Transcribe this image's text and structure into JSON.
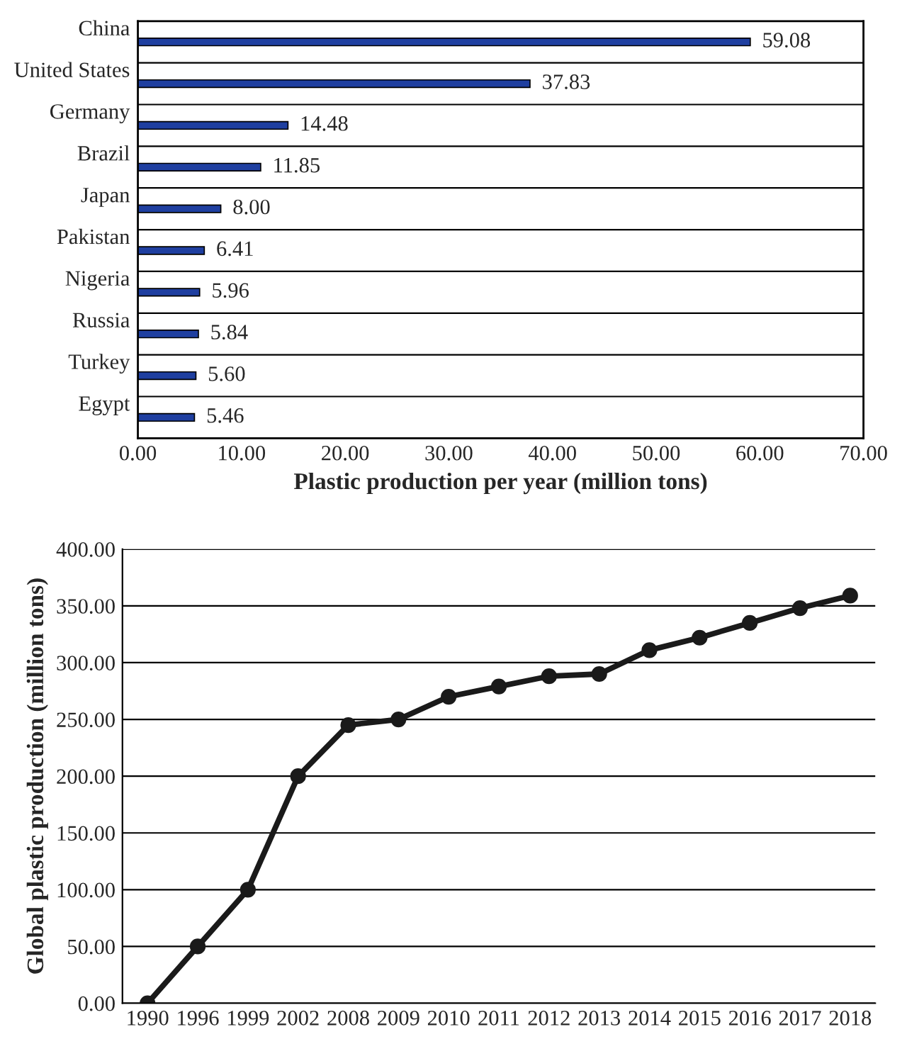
{
  "chart_data": [
    {
      "type": "bar",
      "orientation": "horizontal",
      "xlabel": "Plastic production per year (million tons)",
      "categories": [
        "China",
        "United States",
        "Germany",
        "Brazil",
        "Japan",
        "Pakistan",
        "Nigeria",
        "Russia",
        "Turkey",
        "Egypt"
      ],
      "values": [
        59.08,
        37.83,
        14.48,
        11.85,
        8.0,
        6.41,
        5.96,
        5.84,
        5.6,
        5.46
      ],
      "value_labels": [
        "59.08",
        "37.83",
        "14.48",
        "11.85",
        "8.00",
        "6.41",
        "5.96",
        "5.84",
        "5.60",
        "5.46"
      ],
      "color": "#1f3fa0",
      "xlim": [
        0,
        70
      ],
      "xticks": [
        {
          "value": 0,
          "label": "0.00"
        },
        {
          "value": 10,
          "label": "10.00"
        },
        {
          "value": 20,
          "label": "20.00"
        },
        {
          "value": 30,
          "label": "30.00"
        },
        {
          "value": 40,
          "label": "40.00"
        },
        {
          "value": 50,
          "label": "50.00"
        },
        {
          "value": 60,
          "label": "60.00"
        },
        {
          "value": 70,
          "label": "70.00"
        }
      ],
      "grid": false
    },
    {
      "type": "line",
      "ylabel": "Global plastic production (million tons)",
      "categories": [
        "1990",
        "1996",
        "1999",
        "2002",
        "2008",
        "2009",
        "2010",
        "2011",
        "2012",
        "2013",
        "2014",
        "2015",
        "2016",
        "2017",
        "2018"
      ],
      "values": [
        0,
        50,
        100,
        200,
        245,
        250,
        270,
        279,
        288,
        290,
        311,
        322,
        335,
        348,
        359
      ],
      "color": "#1a1a1a",
      "marker": "circle",
      "line_style": "solid",
      "ylim": [
        0,
        400
      ],
      "yticks": [
        {
          "value": 0,
          "label": "0.00"
        },
        {
          "value": 50,
          "label": "50.00"
        },
        {
          "value": 100,
          "label": "100.00"
        },
        {
          "value": 150,
          "label": "150.00"
        },
        {
          "value": 200,
          "label": "200.00"
        },
        {
          "value": 250,
          "label": "250.00"
        },
        {
          "value": 300,
          "label": "300.00"
        },
        {
          "value": 350,
          "label": "350.00"
        },
        {
          "value": 400,
          "label": "400.00"
        }
      ],
      "grid": "y"
    }
  ]
}
